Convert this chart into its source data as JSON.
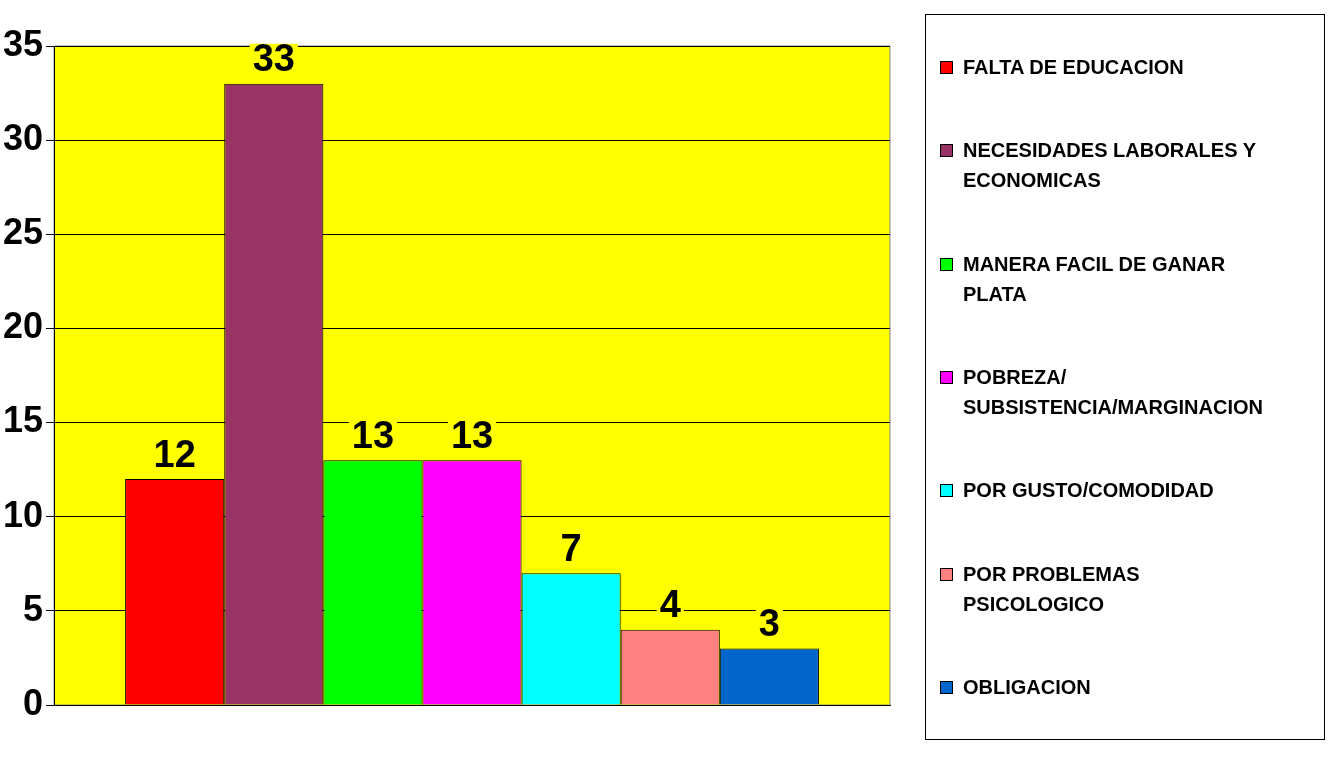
{
  "chart_data": {
    "type": "bar",
    "categories": [
      null
    ],
    "series": [
      {
        "name": "FALTA DE EDUCACION",
        "color": "#ff0000",
        "values": [
          12
        ]
      },
      {
        "name": "NECESIDADES LABORALES Y ECONOMICAS",
        "color": "#993366",
        "values": [
          33
        ]
      },
      {
        "name": "MANERA FACIL DE GANAR PLATA",
        "color": "#00ff00",
        "values": [
          13
        ]
      },
      {
        "name": "POBREZA/ SUBSISTENCIA/MARGINACION",
        "color": "#ff00ff",
        "values": [
          13
        ]
      },
      {
        "name": "POR GUSTO/COMODIDAD",
        "color": "#00ffff",
        "values": [
          7
        ]
      },
      {
        "name": "POR PROBLEMAS PSICOLOGICO",
        "color": "#ff8080",
        "values": [
          4
        ]
      },
      {
        "name": "OBLIGACION",
        "color": "#0066cc",
        "values": [
          3
        ]
      }
    ],
    "ylim": [
      0,
      35
    ],
    "yticks": [
      0,
      5,
      10,
      15,
      20,
      25,
      30,
      35
    ],
    "grid": "y",
    "legend": "right",
    "data_labels": true
  }
}
